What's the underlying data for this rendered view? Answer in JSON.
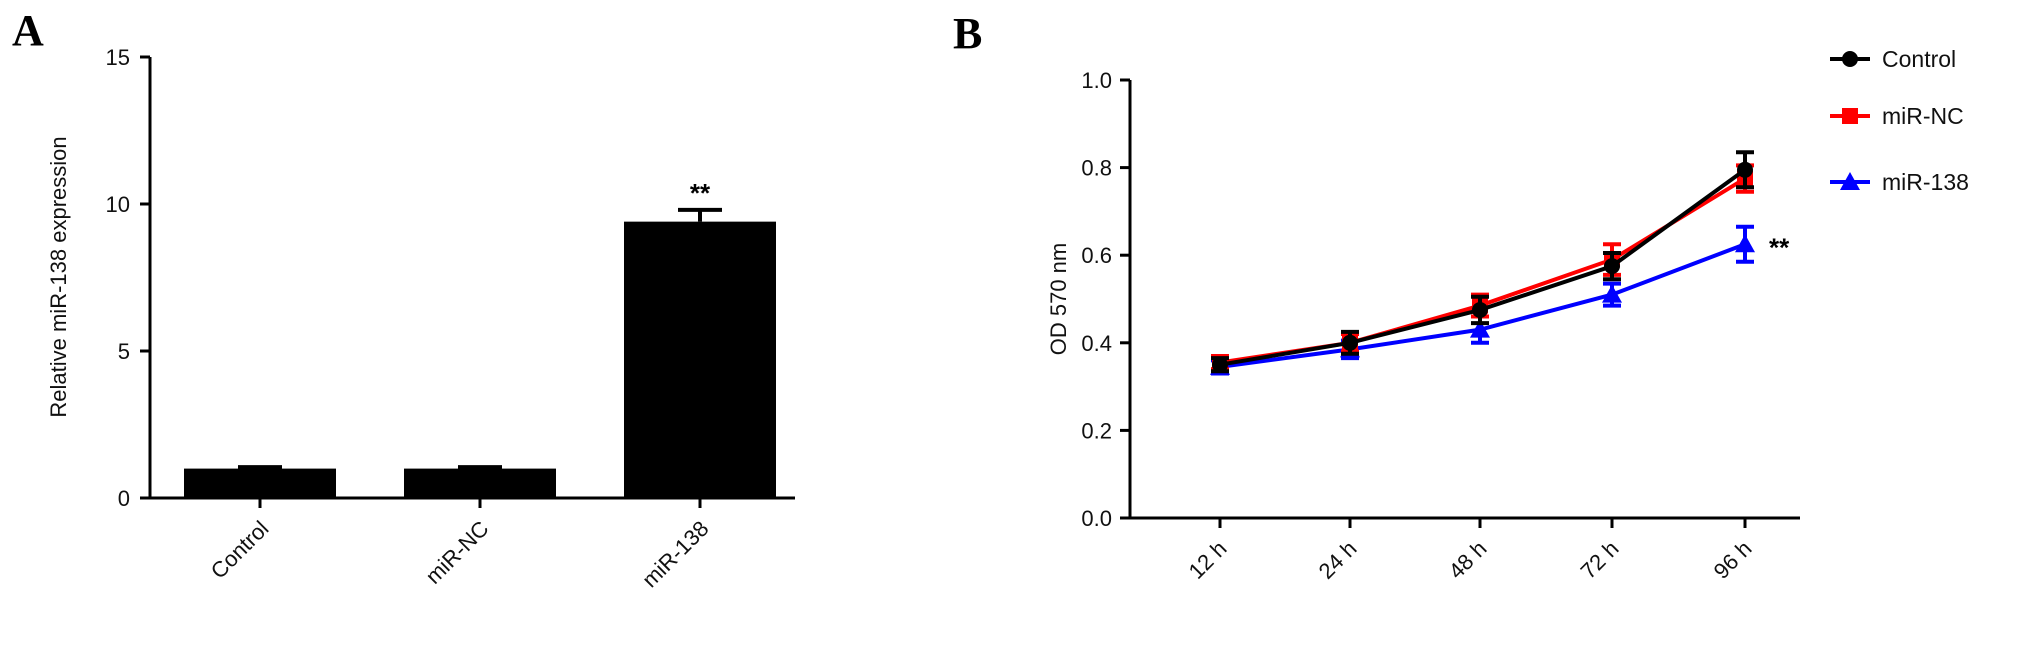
{
  "panels": {
    "a": {
      "letter": "A"
    },
    "b": {
      "letter": "B"
    }
  },
  "chart_data": [
    {
      "type": "bar",
      "panel": "A",
      "title": "",
      "xlabel": "",
      "ylabel": "Relative miR-138 expression",
      "categories": [
        "Control",
        "miR-NC",
        "miR-138"
      ],
      "values": [
        1.0,
        1.0,
        9.4
      ],
      "errors": [
        0.05,
        0.05,
        0.4
      ],
      "ylim": [
        0,
        15
      ],
      "yticks": [
        "0",
        "5",
        "10",
        "15"
      ],
      "bar_color": "#000000",
      "annotations": [
        {
          "category": "miR-138",
          "text": "**"
        }
      ],
      "grid": false
    },
    {
      "type": "line",
      "panel": "B",
      "title": "",
      "xlabel": "",
      "ylabel": "OD 570 nm",
      "categories": [
        "12 h",
        "24 h",
        "48 h",
        "72 h",
        "96 h"
      ],
      "ylim": [
        0.0,
        1.0
      ],
      "yticks": [
        "0.0",
        "0.2",
        "0.4",
        "0.6",
        "0.8",
        "1.0"
      ],
      "legend_position": "top-right",
      "grid": false,
      "series": [
        {
          "name": "Control",
          "color": "#000000",
          "marker": "circle",
          "values": [
            0.35,
            0.4,
            0.475,
            0.575,
            0.795
          ],
          "errors": [
            0.015,
            0.025,
            0.03,
            0.03,
            0.04
          ]
        },
        {
          "name": "miR-NC",
          "color": "#ff0000",
          "marker": "square",
          "values": [
            0.355,
            0.4,
            0.485,
            0.59,
            0.775
          ],
          "errors": [
            0.015,
            0.02,
            0.025,
            0.035,
            0.03
          ]
        },
        {
          "name": "miR-138",
          "color": "#0000ff",
          "marker": "triangle",
          "values": [
            0.345,
            0.385,
            0.43,
            0.51,
            0.625
          ],
          "errors": [
            0.015,
            0.02,
            0.03,
            0.025,
            0.04
          ]
        }
      ],
      "annotations": [
        {
          "category": "96 h",
          "series": "miR-138",
          "text": "**"
        }
      ]
    }
  ]
}
